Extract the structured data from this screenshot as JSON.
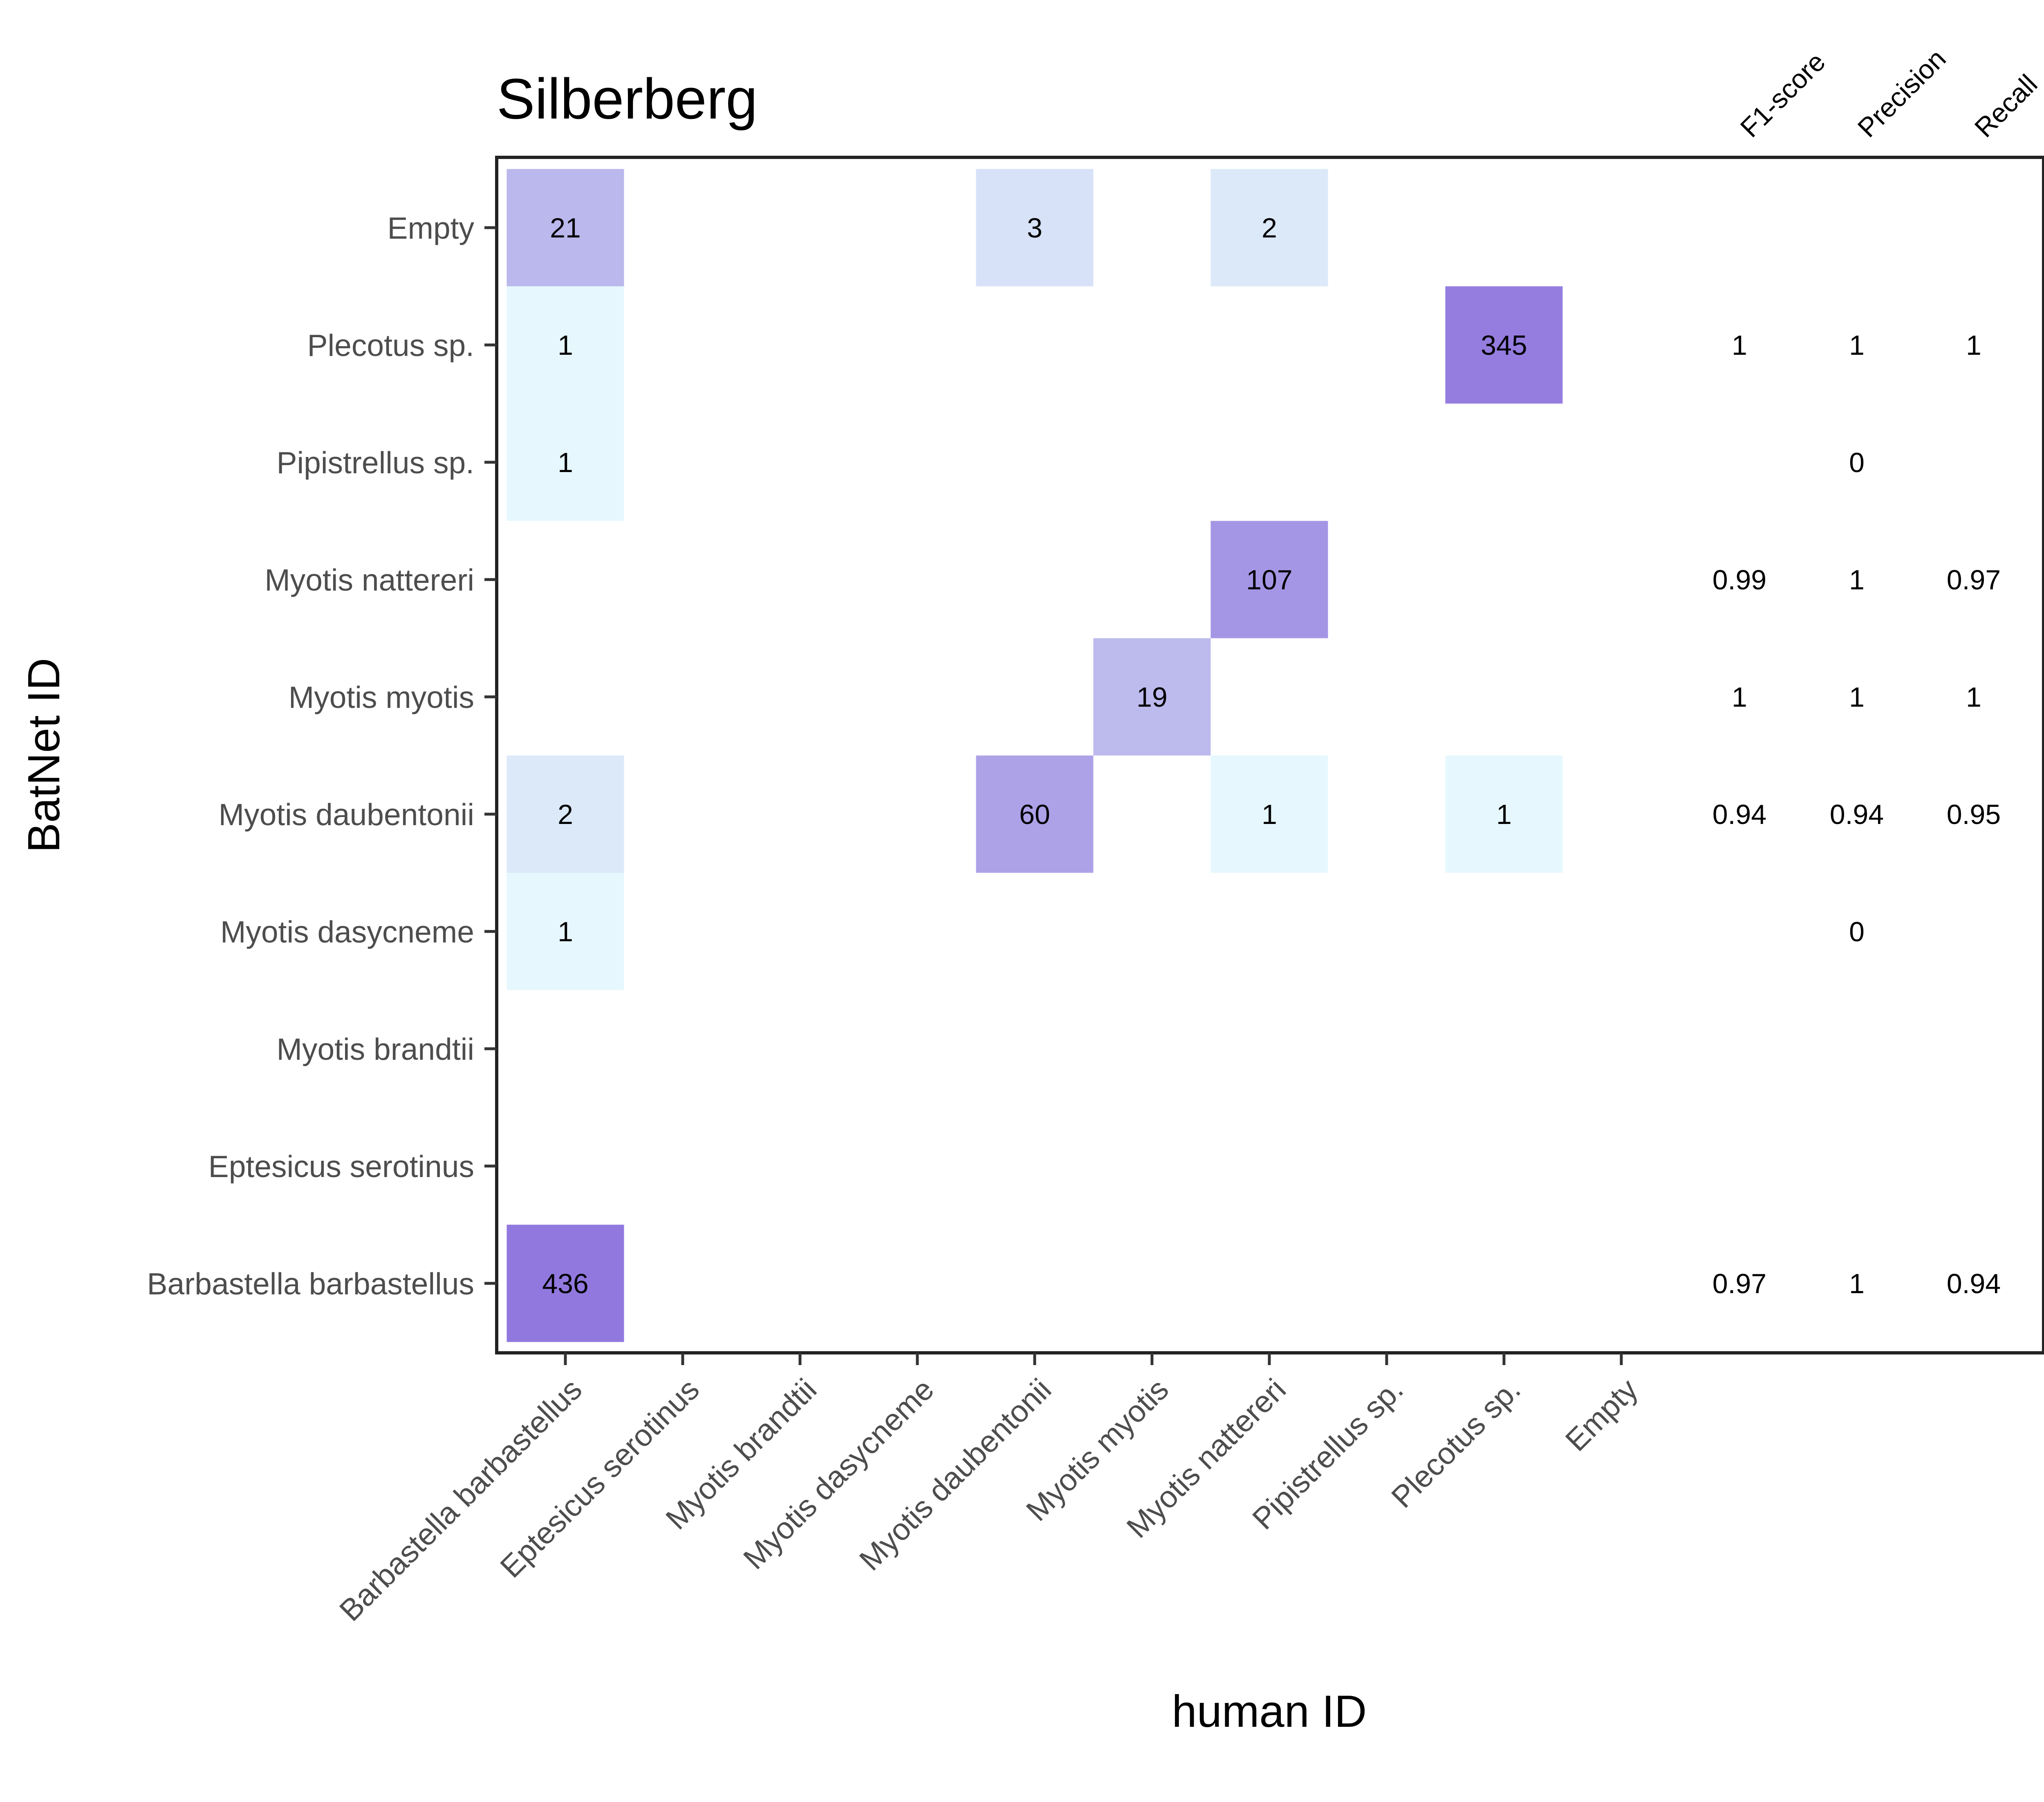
{
  "chart_data": {
    "type": "heatmap",
    "title": "Silberberg",
    "xlabel": "human ID",
    "ylabel": "BatNet ID",
    "x_categories": [
      "Barbastella barbastellus",
      "Eptesicus serotinus",
      "Myotis brandtii",
      "Myotis dasycneme",
      "Myotis daubentonii",
      "Myotis myotis",
      "Myotis nattereri",
      "Pipistrellus sp.",
      "Plecotus sp.",
      "Empty"
    ],
    "y_categories": [
      "Barbastella barbastellus",
      "Eptesicus serotinus",
      "Myotis brandtii",
      "Myotis dasycneme",
      "Myotis daubentonii",
      "Myotis myotis",
      "Myotis nattereri",
      "Pipistrellus sp.",
      "Plecotus sp.",
      "Empty"
    ],
    "cells": [
      {
        "x": "Barbastella barbastellus",
        "y": "Empty",
        "value": 21
      },
      {
        "x": "Myotis daubentonii",
        "y": "Empty",
        "value": 3
      },
      {
        "x": "Myotis nattereri",
        "y": "Empty",
        "value": 2
      },
      {
        "x": "Barbastella barbastellus",
        "y": "Plecotus sp.",
        "value": 1
      },
      {
        "x": "Plecotus sp.",
        "y": "Plecotus sp.",
        "value": 345
      },
      {
        "x": "Barbastella barbastellus",
        "y": "Pipistrellus sp.",
        "value": 1
      },
      {
        "x": "Myotis nattereri",
        "y": "Myotis nattereri",
        "value": 107
      },
      {
        "x": "Myotis myotis",
        "y": "Myotis myotis",
        "value": 19
      },
      {
        "x": "Barbastella barbastellus",
        "y": "Myotis daubentonii",
        "value": 2
      },
      {
        "x": "Myotis daubentonii",
        "y": "Myotis daubentonii",
        "value": 60
      },
      {
        "x": "Myotis nattereri",
        "y": "Myotis daubentonii",
        "value": 1
      },
      {
        "x": "Plecotus sp.",
        "y": "Myotis daubentonii",
        "value": 1
      },
      {
        "x": "Barbastella barbastellus",
        "y": "Myotis dasycneme",
        "value": 1
      },
      {
        "x": "Barbastella barbastellus",
        "y": "Barbastella barbastellus",
        "value": 436
      }
    ],
    "metric_headers": [
      "F1-score",
      "Precision",
      "Recall"
    ],
    "metrics": [
      {
        "y": "Plecotus sp.",
        "values": [
          "1",
          "1",
          "1"
        ]
      },
      {
        "y": "Pipistrellus sp.",
        "values": [
          "",
          "0",
          ""
        ]
      },
      {
        "y": "Myotis nattereri",
        "values": [
          "0.99",
          "1",
          "0.97"
        ]
      },
      {
        "y": "Myotis myotis",
        "values": [
          "1",
          "1",
          "1"
        ]
      },
      {
        "y": "Myotis daubentonii",
        "values": [
          "0.94",
          "0.94",
          "0.95"
        ]
      },
      {
        "y": "Myotis dasycneme",
        "values": [
          "",
          "0",
          ""
        ]
      },
      {
        "y": "Barbastella barbastellus",
        "values": [
          "0.97",
          "1",
          "0.94"
        ]
      }
    ],
    "color_scale": {
      "low": "#e6f8fd",
      "high": "#9178de",
      "log": true
    },
    "grid": false,
    "legend": "none"
  }
}
